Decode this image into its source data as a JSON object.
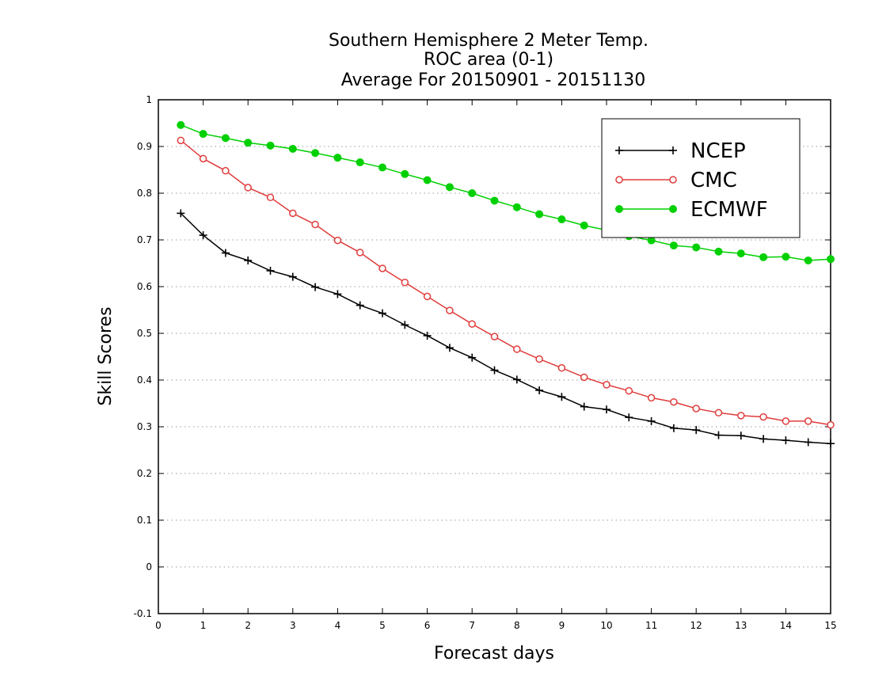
{
  "chart_data": {
    "type": "line",
    "title": [
      "Southern Hemisphere 2 Meter Temp.",
      "ROC area (0-1)",
      "Average For 20150901 - 20151130"
    ],
    "xlabel": "Forecast days",
    "ylabel": "Skill Scores",
    "xlim": [
      0,
      15
    ],
    "ylim": [
      -0.1,
      1
    ],
    "xticks": [
      0,
      1,
      2,
      3,
      4,
      5,
      6,
      7,
      8,
      9,
      10,
      11,
      12,
      13,
      14,
      15
    ],
    "yticks": [
      -0.1,
      0,
      0.1,
      0.2,
      0.3,
      0.4,
      0.5,
      0.6,
      0.7,
      0.8,
      0.9,
      1
    ],
    "ytick_labels": [
      "-0.1",
      "0",
      "0.1",
      "0.2",
      "0.3",
      "0.4",
      "0.5",
      "0.6",
      "0.7",
      "0.8",
      "0.9",
      "1"
    ],
    "grid": "horizontal-dotted",
    "legend_position": "top-right",
    "x": [
      0.5,
      1,
      1.5,
      2,
      2.5,
      3,
      3.5,
      4,
      4.5,
      5,
      5.5,
      6,
      6.5,
      7,
      7.5,
      8,
      8.5,
      9,
      9.5,
      10,
      10.5,
      11,
      11.5,
      12,
      12.5,
      13,
      13.5,
      14,
      14.5,
      15
    ],
    "series": [
      {
        "name": "NCEP",
        "color": "#000000",
        "marker": "plus",
        "values": [
          0.757,
          0.71,
          0.672,
          0.656,
          0.634,
          0.621,
          0.599,
          0.584,
          0.56,
          0.543,
          0.518,
          0.495,
          0.469,
          0.448,
          0.421,
          0.401,
          0.378,
          0.364,
          0.343,
          0.337,
          0.32,
          0.312,
          0.297,
          0.293,
          0.282,
          0.281,
          0.274,
          0.271,
          0.267,
          0.264
        ]
      },
      {
        "name": "CMC",
        "color": "#e03c3c",
        "marker": "open-circle",
        "values": [
          0.913,
          0.874,
          0.848,
          0.812,
          0.791,
          0.757,
          0.733,
          0.699,
          0.673,
          0.639,
          0.609,
          0.579,
          0.549,
          0.52,
          0.493,
          0.466,
          0.445,
          0.426,
          0.406,
          0.39,
          0.377,
          0.362,
          0.353,
          0.339,
          0.33,
          0.324,
          0.321,
          0.312,
          0.312,
          0.304
        ]
      },
      {
        "name": "ECMWF",
        "color": "#00d000",
        "marker": "filled-circle",
        "values": [
          0.946,
          0.927,
          0.918,
          0.908,
          0.902,
          0.895,
          0.886,
          0.876,
          0.866,
          0.855,
          0.841,
          0.828,
          0.813,
          0.8,
          0.784,
          0.77,
          0.755,
          0.744,
          0.731,
          0.721,
          0.708,
          0.699,
          0.688,
          0.684,
          0.675,
          0.671,
          0.663,
          0.664,
          0.656,
          0.659
        ]
      }
    ]
  }
}
